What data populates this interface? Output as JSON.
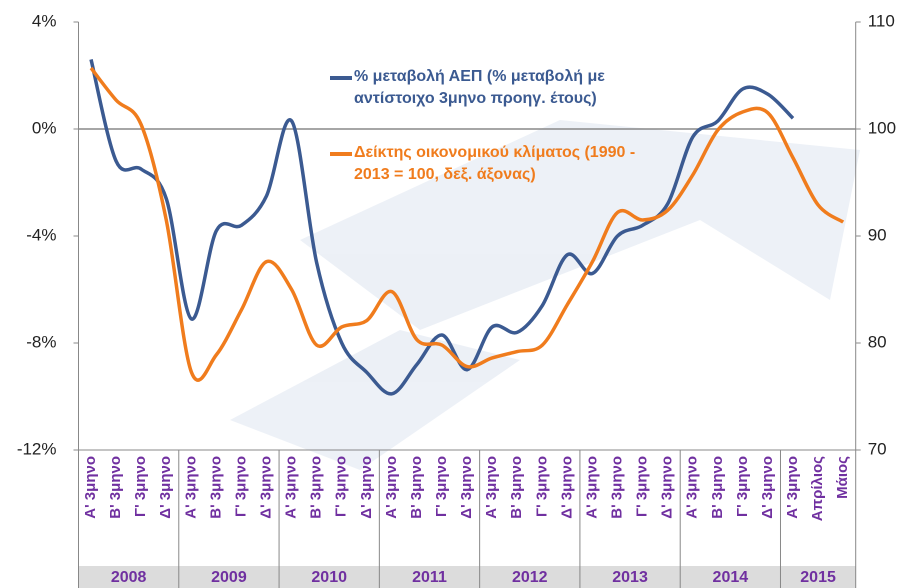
{
  "chart_data": {
    "type": "line",
    "categories": [
      "Α' 3μηνο",
      "Β' 3μηνο",
      "Γ' 3μηνο",
      "Δ' 3μηνο",
      "Α' 3μηνο",
      "Β' 3μηνο",
      "Γ' 3μηνο",
      "Δ' 3μηνο",
      "Α' 3μηνο",
      "Β' 3μηνο",
      "Γ' 3μηνο",
      "Δ' 3μηνο",
      "Α' 3μηνο",
      "Β' 3μηνο",
      "Γ' 3μηνο",
      "Δ' 3μηνο",
      "Α' 3μηνο",
      "Β' 3μηνο",
      "Γ' 3μηνο",
      "Δ' 3μηνο",
      "Α' 3μηνο",
      "Β' 3μηνο",
      "Γ' 3μηνο",
      "Δ' 3μηνο",
      "Α' 3μηνο",
      "Β' 3μηνο",
      "Γ' 3μηνο",
      "Δ' 3μηνο",
      "Α' 3μηνο",
      "Απρίλιος",
      "Μάιος"
    ],
    "years": [
      "2008",
      "2009",
      "2010",
      "2011",
      "2012",
      "2013",
      "2014",
      "2015"
    ],
    "series": [
      {
        "name": "% μεταβολή ΑΕΠ (% μεταβολή με αντίστοιχο 3μηνο προηγ. έτους)",
        "color": "#3b5a91",
        "values": [
          2.6,
          -1.2,
          -1.5,
          -2.6,
          -7.1,
          -3.8,
          -3.6,
          -2.5,
          0.3,
          -5.0,
          -8.0,
          -9.1,
          -9.9,
          -8.8,
          -7.7,
          -9.0,
          -7.4,
          -7.6,
          -6.6,
          -4.7,
          -5.4,
          -4.0,
          -3.6,
          -2.8,
          -0.3,
          0.3,
          1.5,
          1.3,
          0.4,
          null,
          null
        ]
      },
      {
        "name": "Δείκτης οικονομικού κλίματος (1990 - 2013 = 100, δεξ. άξονας)",
        "color": "#f07c1d",
        "axis": "y2",
        "values": [
          105.7,
          102.7,
          100.4,
          91.5,
          77.3,
          78.9,
          83.1,
          87.6,
          85.0,
          79.8,
          81.5,
          82.1,
          84.8,
          80.3,
          79.8,
          77.8,
          78.6,
          79.2,
          79.8,
          83.6,
          87.6,
          92.2,
          91.5,
          92.4,
          95.7,
          99.9,
          101.6,
          101.5,
          97.3,
          92.9,
          91.3
        ]
      }
    ],
    "ylim": [
      -12,
      4
    ],
    "yticks": [
      {
        "value": -12,
        "label": "-12%"
      },
      {
        "value": -8,
        "label": "-8%"
      },
      {
        "value": -4,
        "label": "-4%"
      },
      {
        "value": 0,
        "label": "0%"
      },
      {
        "value": 4,
        "label": "4%"
      }
    ],
    "y2lim": [
      70,
      110
    ],
    "y2ticks": [
      70,
      80,
      90,
      100,
      110
    ]
  }
}
